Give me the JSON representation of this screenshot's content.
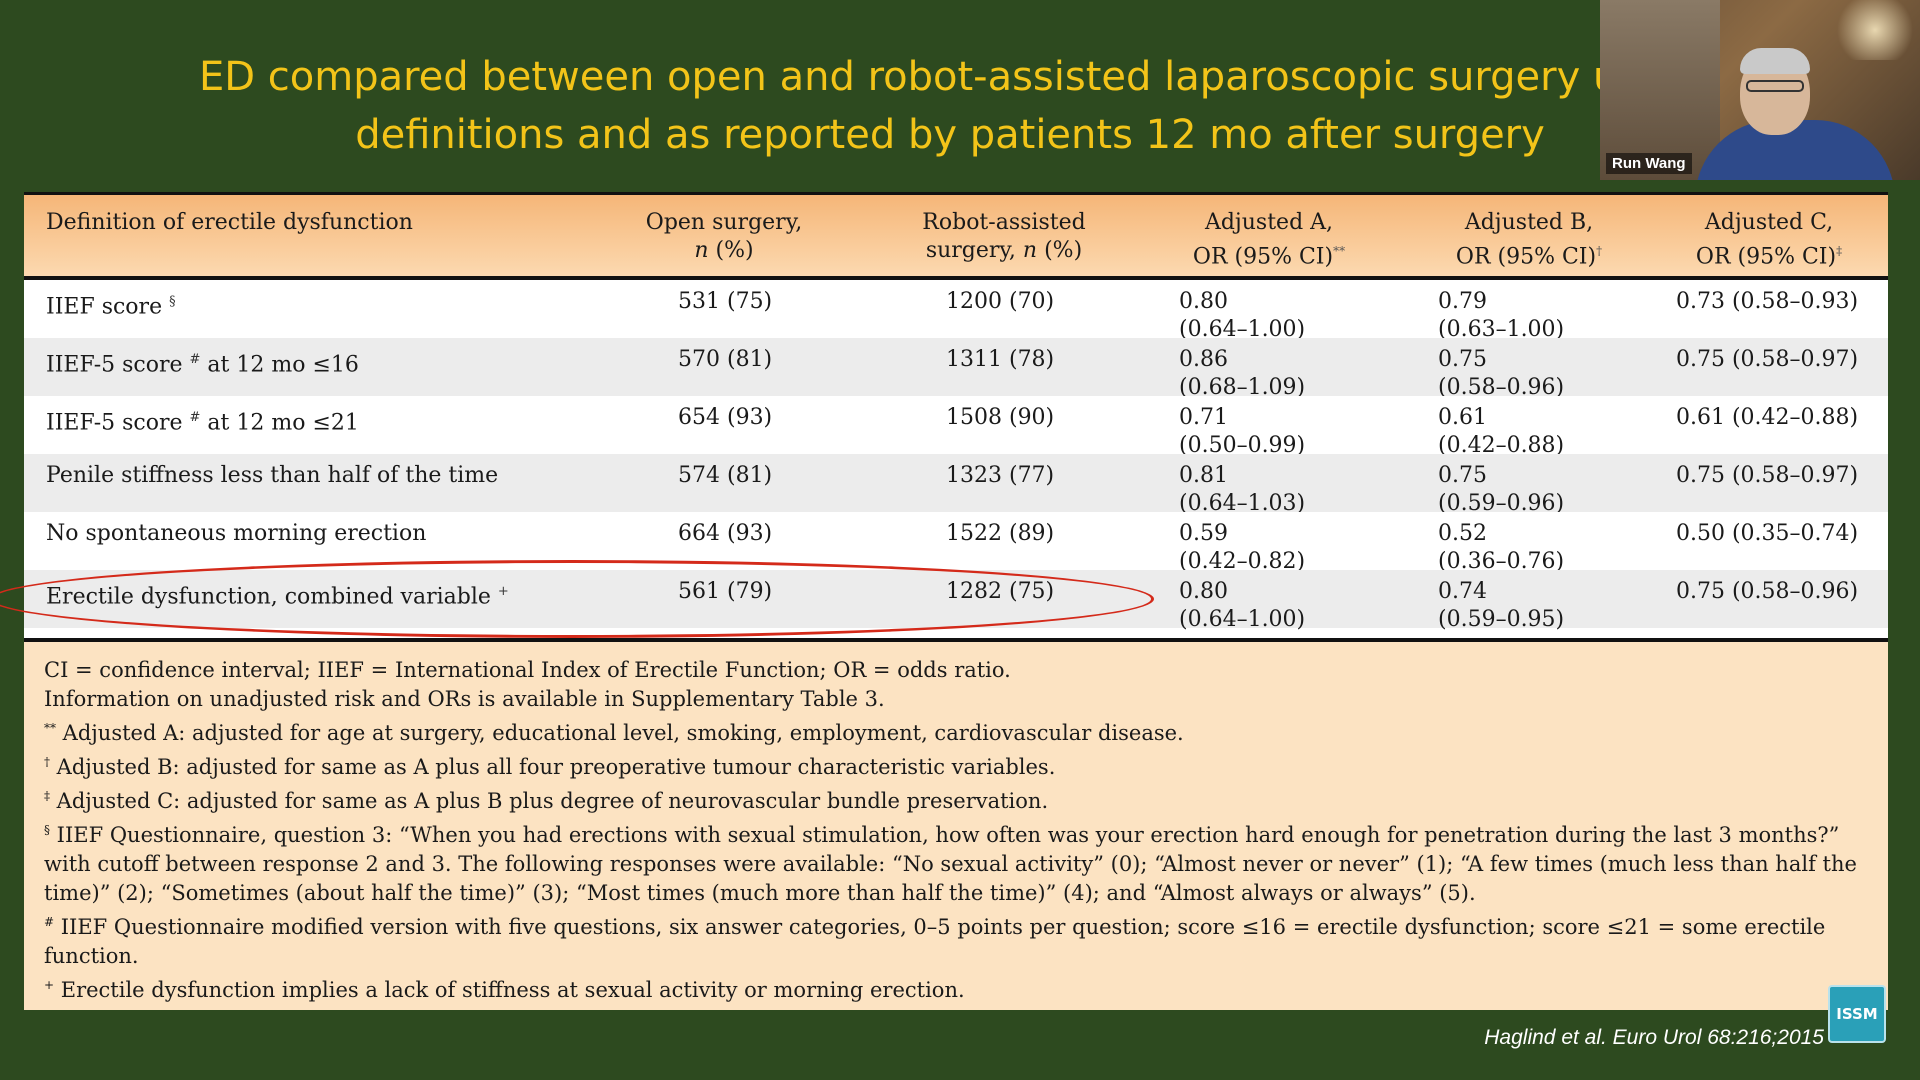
{
  "slide": {
    "title_line1": "ED compared between open and robot-assisted laparoscopic surgery using",
    "title_line2": "definitions and as reported by patients 12 mo after surgery",
    "citation": "Haglind et al. Euro Urol 68:216;2015",
    "logo_text": "ISSM"
  },
  "video": {
    "participant_name": "Run Wang"
  },
  "table": {
    "headers": {
      "definition": "Definition of erectile dysfunction",
      "open_line1": "Open surgery,",
      "open_line2_n": "n",
      "open_line2_rest": " (%)",
      "robot_line1": "Robot-assisted",
      "robot_line2_pre": "surgery, ",
      "robot_line2_n": "n",
      "robot_line2_rest": " (%)",
      "adjA_line1": "Adjusted A,",
      "adjA_line2": "OR (95% CI)",
      "adjA_mark": "**",
      "adjB_line1": "Adjusted B,",
      "adjB_line2": "OR (95% CI)",
      "adjB_mark": "†",
      "adjC_line1": "Adjusted C,",
      "adjC_line2": "OR (95% CI)",
      "adjC_mark": "‡"
    },
    "rows": [
      {
        "definition": "IIEF score ",
        "mark": "§",
        "open": "531 (75)",
        "robot": "1200 (70)",
        "adjA_1": "0.80",
        "adjA_2": "(0.64–1.00)",
        "adjB_1": "0.79",
        "adjB_2": "(0.63–1.00)",
        "adjC": "0.73 (0.58–0.93)"
      },
      {
        "definition": "IIEF-5 score ",
        "mark": "#",
        "definition_tail": " at 12 mo ≤16",
        "open": "570 (81)",
        "robot": "1311 (78)",
        "adjA_1": "0.86",
        "adjA_2": "(0.68–1.09)",
        "adjB_1": "0.75",
        "adjB_2": "(0.58–0.96)",
        "adjC": "0.75 (0.58–0.97)"
      },
      {
        "definition": "IIEF-5 score ",
        "mark": "#",
        "definition_tail": " at 12 mo ≤21",
        "open": "654 (93)",
        "robot": "1508 (90)",
        "adjA_1": "0.71",
        "adjA_2": "(0.50–0.99)",
        "adjB_1": "0.61",
        "adjB_2": "(0.42–0.88)",
        "adjC": "0.61 (0.42–0.88)"
      },
      {
        "definition": "Penile stiffness less than half of the time",
        "mark": "",
        "open": "574 (81)",
        "robot": "1323 (77)",
        "adjA_1": "0.81",
        "adjA_2": "(0.64–1.03)",
        "adjB_1": "0.75",
        "adjB_2": "(0.59–0.96)",
        "adjC": "0.75 (0.58–0.97)"
      },
      {
        "definition": "No spontaneous morning erection",
        "mark": "",
        "open": "664 (93)",
        "robot": "1522 (89)",
        "adjA_1": "0.59",
        "adjA_2": "(0.42–0.82)",
        "adjB_1": "0.52",
        "adjB_2": "(0.36–0.76)",
        "adjC": "0.50 (0.35–0.74)"
      },
      {
        "definition": "Erectile dysfunction, combined variable ",
        "mark": "+",
        "open": "561 (79)",
        "robot": "1282 (75)",
        "adjA_1": "0.80",
        "adjA_2": "(0.64–1.00)",
        "adjB_1": "0.74",
        "adjB_2": "(0.59–0.95)",
        "adjC": "0.75 (0.58–0.96)"
      }
    ]
  },
  "footnotes": [
    {
      "mark": "",
      "text": "CI = confidence interval; IIEF = International Index of Erectile Function; OR = odds ratio."
    },
    {
      "mark": "",
      "text": "Information on unadjusted risk and ORs is available in Supplementary Table 3."
    },
    {
      "mark": "**",
      "text": " Adjusted A: adjusted for age at surgery, educational level, smoking, employment, cardiovascular disease."
    },
    {
      "mark": "†",
      "text": " Adjusted B: adjusted for same as A plus all four preoperative tumour characteristic variables."
    },
    {
      "mark": "‡",
      "text": " Adjusted C: adjusted for same as A plus B plus degree of neurovascular bundle preservation."
    },
    {
      "mark": "§",
      "text": " IIEF Questionnaire, question 3: “When you had erections with sexual stimulation, how often was your erection hard enough for penetration during the last 3 months?” with cutoff between response 2 and 3. The following responses were available: “No sexual activity” (0); “Almost never or never” (1); “A few times (much less than half the time)” (2); “Sometimes (about half the time)” (3); “Most times (much more than half the time)” (4); and “Almost always or always” (5)."
    },
    {
      "mark": "#",
      "text": " IIEF Questionnaire modified version with five questions, six answer categories, 0–5 points per question; score ≤16 = erectile dysfunction; score ≤21 = some erectile function."
    },
    {
      "mark": "+",
      "text": " Erectile dysfunction implies a lack of stiffness at sexual activity or morning erection."
    }
  ]
}
